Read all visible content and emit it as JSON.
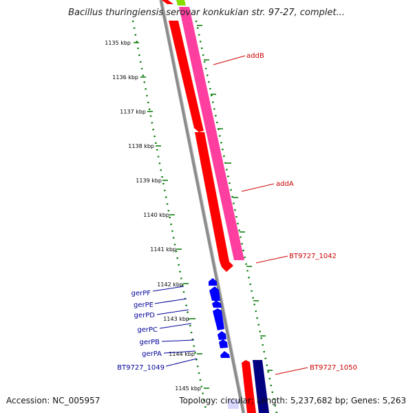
{
  "title": "Bacillus thuringiensis serovar konkukian str. 97-27, complet...",
  "footer": {
    "accession": "Accession: NC_005957",
    "topology": "Topology: circular; Length: 5,237,682 bp; Genes: 5,263"
  },
  "ticks": [
    "1135 kbp",
    "1136 kbp",
    "1137 kbp",
    "1138 kbp",
    "1139 kbp",
    "1140 kbp",
    "1141 kbp",
    "1142 kbp",
    "1143 kbp",
    "1144 kbp",
    "1145 kbp"
  ],
  "genes_right": [
    "addB",
    "addA",
    "BT9727_1042",
    "BT9727_1050"
  ],
  "genes_left": [
    "gerPF",
    "gerPE",
    "gerPD",
    "gerPC",
    "gerPB",
    "gerPA",
    "BT9727_1049"
  ],
  "colors": {
    "backbone": "#8c8c8c",
    "red_gene": "#ff0000",
    "pink_gene": "#ff3fa0",
    "blue_gene": "#0000ff",
    "navy_gene": "#000080",
    "green_gene": "#88dd00",
    "tick_green": "#007700",
    "label_red": "#cc0000",
    "label_blue": "#000099"
  }
}
